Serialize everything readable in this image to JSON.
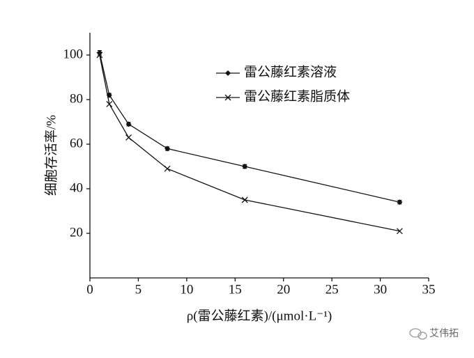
{
  "chart_data": {
    "type": "line",
    "x_label": "ρ(雷公藤红素)/(μmol·L⁻¹)",
    "y_label": "细胞存活率/%",
    "x": [
      1,
      2,
      4,
      8,
      16,
      32
    ],
    "series": [
      {
        "name": "雷公藤红素溶液",
        "color": "#111111",
        "marker": "diamond",
        "values": [
          101,
          82,
          69,
          58,
          50,
          34
        ],
        "errors": [
          1,
          0.8,
          0.8,
          0.8,
          0.8,
          0.8
        ]
      },
      {
        "name": "雷公藤红素脂质体",
        "color": "#111111",
        "marker": "x",
        "values": [
          100,
          78,
          63,
          49,
          35,
          21
        ]
      }
    ],
    "xlim": [
      0,
      35
    ],
    "xticks": [
      0,
      5,
      10,
      15,
      20,
      25,
      30,
      35
    ],
    "ylim": [
      0,
      110
    ],
    "yticks": [
      20,
      40,
      60,
      80,
      100
    ],
    "grid": false,
    "legend": "upper right",
    "watermark": "艾伟拓"
  }
}
